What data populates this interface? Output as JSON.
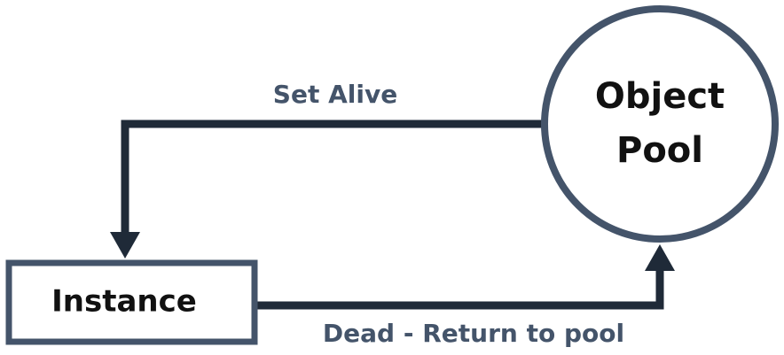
{
  "diagram": {
    "nodes": {
      "pool": {
        "line1": "Object",
        "line2": "Pool"
      },
      "instance": {
        "label": "Instance"
      }
    },
    "edges": {
      "set_alive": {
        "label": "Set Alive"
      },
      "dead_return": {
        "label": "Dead - Return to pool"
      }
    },
    "colors": {
      "node_outline": "#44546a",
      "connector": "#1f2a38",
      "edge_label": "#44546a",
      "node_text": "#111111",
      "background": "#ffffff"
    }
  }
}
